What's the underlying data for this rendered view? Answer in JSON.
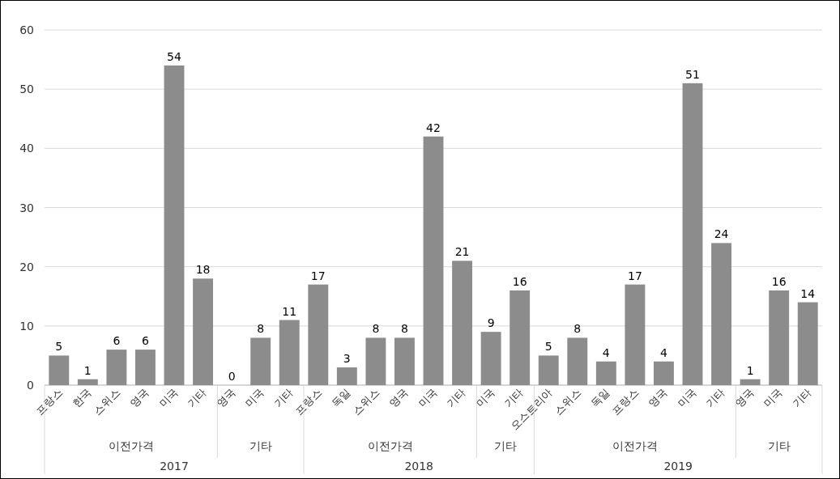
{
  "chart_data": {
    "type": "bar",
    "categories": [
      "프랑스",
      "한국",
      "스위스",
      "영국",
      "미국",
      "기타",
      "영국",
      "미국",
      "기타",
      "프랑스",
      "독일",
      "스위스",
      "영국",
      "미국",
      "기타",
      "미국",
      "기타",
      "오스트리아",
      "스위스",
      "독일",
      "프랑스",
      "영국",
      "미국",
      "기타",
      "영국",
      "미국",
      "기타"
    ],
    "values": [
      5,
      1,
      6,
      6,
      54,
      18,
      0,
      8,
      11,
      17,
      3,
      8,
      8,
      42,
      21,
      9,
      16,
      5,
      8,
      4,
      17,
      4,
      51,
      24,
      1,
      16,
      14
    ],
    "color": "#8c8c8c",
    "ylim": [
      0,
      60
    ],
    "yticks": [
      0,
      10,
      20,
      30,
      40,
      50,
      60
    ],
    "grid": "y",
    "data_labels": true,
    "annotations": [
      "이전가격",
      "기타",
      "이전가격",
      "기타",
      "이전가격",
      "기타",
      "2017",
      "2018",
      "2019"
    ]
  }
}
